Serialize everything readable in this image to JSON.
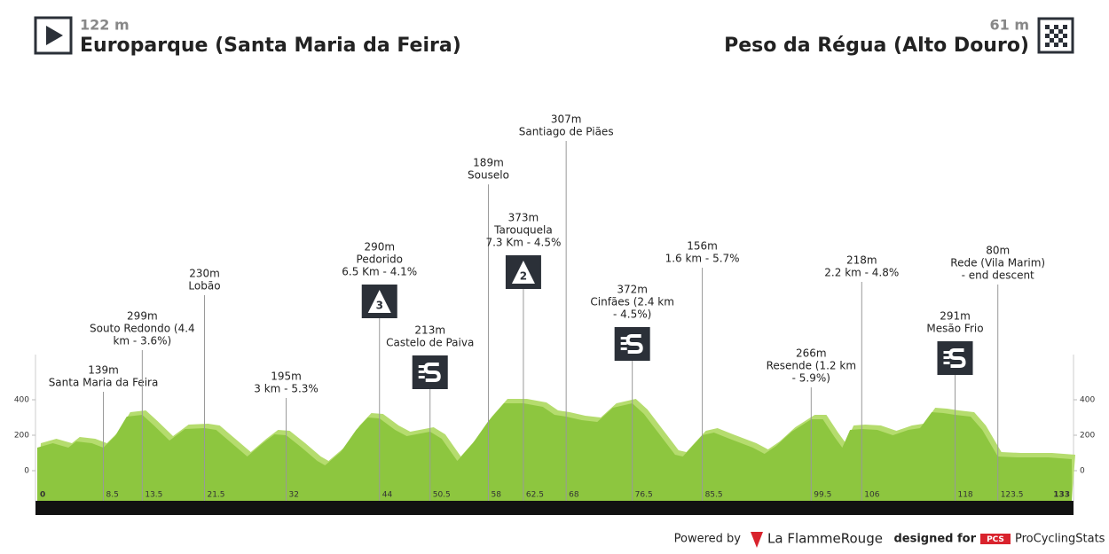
{
  "header": {
    "start": {
      "altitude": "122 m",
      "name": "Europarque (Santa Maria da Feira)"
    },
    "finish": {
      "altitude": "61 m",
      "name": "Peso da Régua (Alto Douro)"
    }
  },
  "chart_data": {
    "type": "area",
    "color": "#8dc63f",
    "shade_color": "#b5dc6e",
    "xlim": [
      0,
      133
    ],
    "ylim": [
      -170,
      655
    ],
    "yticks": [
      0,
      200,
      400
    ],
    "xticks": [
      0,
      8.5,
      13.5,
      21.5,
      32,
      44,
      50.5,
      58,
      62.5,
      68,
      76.5,
      85.5,
      99.5,
      106,
      118,
      123.5,
      133
    ],
    "x": [
      0,
      2,
      4,
      5,
      7,
      8.5,
      10,
      11.5,
      13.5,
      15,
      17,
      19,
      21.5,
      23,
      25,
      27,
      29,
      30.5,
      32,
      34,
      36,
      37,
      39,
      41,
      42.5,
      44,
      46,
      47.5,
      50.5,
      52,
      54,
      56,
      58,
      60,
      62.5,
      65,
      66.5,
      68,
      70,
      72,
      74,
      76.5,
      78,
      80,
      82,
      83,
      85.5,
      87,
      89,
      92,
      93.5,
      95,
      97,
      99.5,
      101,
      102.5,
      103.5,
      104.5,
      106,
      108,
      110,
      112,
      113.5,
      115,
      116.5,
      118,
      120,
      121.5,
      123.5,
      126,
      130,
      133
    ],
    "values": [
      130,
      155,
      130,
      165,
      155,
      130,
      195,
      305,
      315,
      255,
      170,
      235,
      240,
      230,
      155,
      80,
      155,
      205,
      200,
      130,
      55,
      30,
      105,
      230,
      300,
      295,
      230,
      195,
      220,
      180,
      55,
      155,
      280,
      380,
      380,
      360,
      315,
      305,
      285,
      275,
      355,
      380,
      320,
      205,
      90,
      80,
      200,
      215,
      180,
      130,
      95,
      140,
      220,
      290,
      290,
      190,
      130,
      230,
      235,
      230,
      200,
      230,
      240,
      330,
      325,
      315,
      305,
      230,
      80,
      75,
      75,
      65
    ],
    "annotations": [
      {
        "x": 8.5,
        "lines": [
          "139m",
          "Santa Maria da Feira"
        ]
      },
      {
        "x": 13.5,
        "lines": [
          "299m",
          "Souto Redondo (4.4",
          "km - 3.6%)"
        ]
      },
      {
        "x": 21.5,
        "lines": [
          "230m",
          "Lobão"
        ]
      },
      {
        "x": 32,
        "lines": [
          "195m",
          "3 km - 5.3%"
        ]
      },
      {
        "x": 44,
        "lines": [
          "290m",
          "Pedorido",
          "6.5 Km - 4.1%"
        ],
        "climb_category": "3"
      },
      {
        "x": 50.5,
        "lines": [
          "213m",
          "Castelo de Paiva"
        ],
        "sprint": true
      },
      {
        "x": 58,
        "lines": [
          "189m",
          "Souselo"
        ]
      },
      {
        "x": 62.5,
        "lines": [
          "373m",
          "Tarouquela",
          "7.3 Km - 4.5%"
        ],
        "climb_category": "2"
      },
      {
        "x": 68,
        "lines": [
          "307m",
          "Santiago de Piães"
        ]
      },
      {
        "x": 76.5,
        "lines": [
          "372m",
          "Cinfães (2.4 km",
          "- 4.5%)"
        ],
        "sprint": true
      },
      {
        "x": 85.5,
        "lines": [
          "156m",
          "1.6 km - 5.7%"
        ]
      },
      {
        "x": 99.5,
        "lines": [
          "266m",
          "Resende (1.2 km",
          "- 5.9%)"
        ]
      },
      {
        "x": 106,
        "lines": [
          "218m",
          "2.2 km - 4.8%"
        ]
      },
      {
        "x": 118,
        "lines": [
          "291m",
          "Mesão Frio"
        ],
        "sprint": true
      },
      {
        "x": 123.5,
        "lines": [
          "80m",
          "Rede (Vila Marim)",
          "- end descent"
        ]
      }
    ]
  },
  "footer": {
    "powered": "Powered by",
    "brand": "La FlammeRouge",
    "designed": "designed for",
    "pcs": "PCS",
    "site": "ProCyclingStats"
  }
}
